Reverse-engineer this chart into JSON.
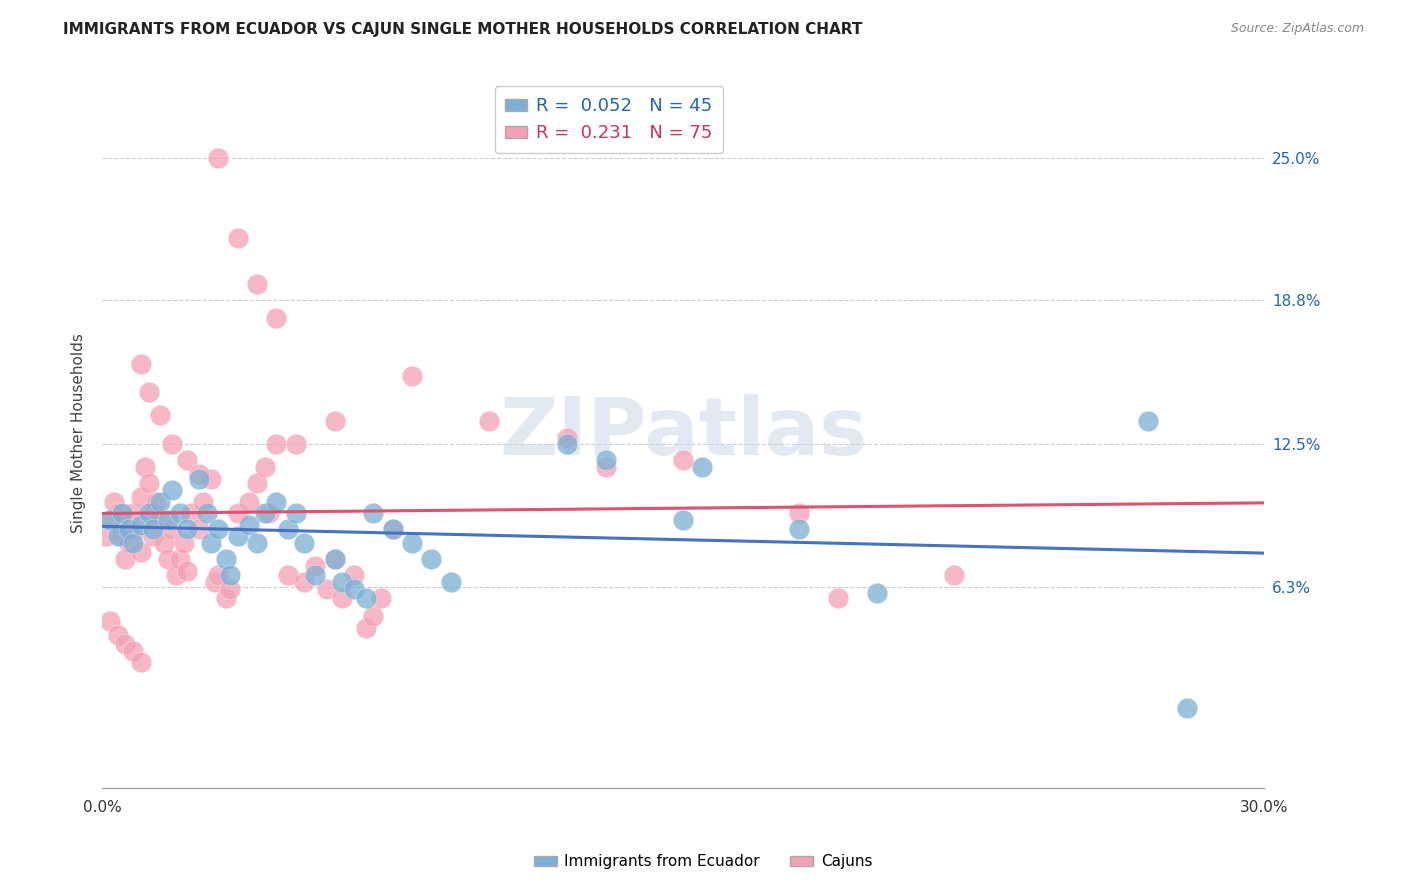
{
  "title": "IMMIGRANTS FROM ECUADOR VS CAJUN SINGLE MOTHER HOUSEHOLDS CORRELATION CHART",
  "source": "Source: ZipAtlas.com",
  "ylabel": "Single Mother Households",
  "xmin": 0.0,
  "xmax": 0.3,
  "ymin": -0.025,
  "ymax": 0.285,
  "blue_color": "#7bafd4",
  "pink_color": "#f4a0b5",
  "blue_line_color": "#4472c4",
  "pink_line_color": "#e05070",
  "blue_text_color": "#2166ac",
  "pink_text_color": "#cc3355",
  "watermark": "ZIPatlas",
  "legend_r_blue": "0.052",
  "legend_n_blue": "45",
  "legend_r_pink": "0.231",
  "legend_n_pink": "75",
  "ytick_vals": [
    0.063,
    0.125,
    0.188,
    0.25
  ],
  "ytick_labels": [
    "6.3%",
    "12.5%",
    "18.8%",
    "25.0%"
  ],
  "ecuador_x": [
    0.002,
    0.004,
    0.005,
    0.007,
    0.008,
    0.01,
    0.012,
    0.013,
    0.015,
    0.017,
    0.018,
    0.02,
    0.022,
    0.025,
    0.027,
    0.028,
    0.03,
    0.032,
    0.033,
    0.035,
    0.038,
    0.04,
    0.042,
    0.045,
    0.048,
    0.05,
    0.052,
    0.055,
    0.06,
    0.062,
    0.065,
    0.068,
    0.07,
    0.075,
    0.08,
    0.085,
    0.09,
    0.12,
    0.13,
    0.15,
    0.155,
    0.18,
    0.2,
    0.27,
    0.28
  ],
  "ecuador_y": [
    0.092,
    0.085,
    0.095,
    0.088,
    0.082,
    0.09,
    0.095,
    0.088,
    0.1,
    0.092,
    0.105,
    0.095,
    0.088,
    0.11,
    0.095,
    0.082,
    0.088,
    0.075,
    0.068,
    0.085,
    0.09,
    0.082,
    0.095,
    0.1,
    0.088,
    0.095,
    0.082,
    0.068,
    0.075,
    0.065,
    0.062,
    0.058,
    0.095,
    0.088,
    0.082,
    0.075,
    0.065,
    0.125,
    0.118,
    0.092,
    0.115,
    0.088,
    0.06,
    0.135,
    0.01
  ],
  "cajun_x": [
    0.001,
    0.002,
    0.003,
    0.004,
    0.005,
    0.006,
    0.006,
    0.007,
    0.008,
    0.009,
    0.01,
    0.01,
    0.011,
    0.012,
    0.013,
    0.013,
    0.014,
    0.015,
    0.016,
    0.017,
    0.018,
    0.019,
    0.02,
    0.021,
    0.022,
    0.023,
    0.025,
    0.026,
    0.028,
    0.029,
    0.03,
    0.032,
    0.033,
    0.035,
    0.038,
    0.04,
    0.042,
    0.043,
    0.045,
    0.048,
    0.05,
    0.052,
    0.055,
    0.058,
    0.06,
    0.062,
    0.065,
    0.068,
    0.07,
    0.072,
    0.075,
    0.03,
    0.035,
    0.04,
    0.045,
    0.06,
    0.01,
    0.012,
    0.015,
    0.018,
    0.022,
    0.025,
    0.08,
    0.1,
    0.12,
    0.13,
    0.15,
    0.002,
    0.004,
    0.006,
    0.008,
    0.01,
    0.18,
    0.19,
    0.22
  ],
  "cajun_y": [
    0.085,
    0.092,
    0.1,
    0.095,
    0.085,
    0.075,
    0.092,
    0.082,
    0.095,
    0.088,
    0.102,
    0.078,
    0.115,
    0.108,
    0.095,
    0.085,
    0.1,
    0.092,
    0.082,
    0.075,
    0.088,
    0.068,
    0.075,
    0.082,
    0.07,
    0.095,
    0.088,
    0.1,
    0.11,
    0.065,
    0.068,
    0.058,
    0.062,
    0.095,
    0.1,
    0.108,
    0.115,
    0.095,
    0.125,
    0.068,
    0.125,
    0.065,
    0.072,
    0.062,
    0.075,
    0.058,
    0.068,
    0.045,
    0.05,
    0.058,
    0.088,
    0.25,
    0.215,
    0.195,
    0.18,
    0.135,
    0.16,
    0.148,
    0.138,
    0.125,
    0.118,
    0.112,
    0.155,
    0.135,
    0.128,
    0.115,
    0.118,
    0.048,
    0.042,
    0.038,
    0.035,
    0.03,
    0.095,
    0.058,
    0.068
  ]
}
